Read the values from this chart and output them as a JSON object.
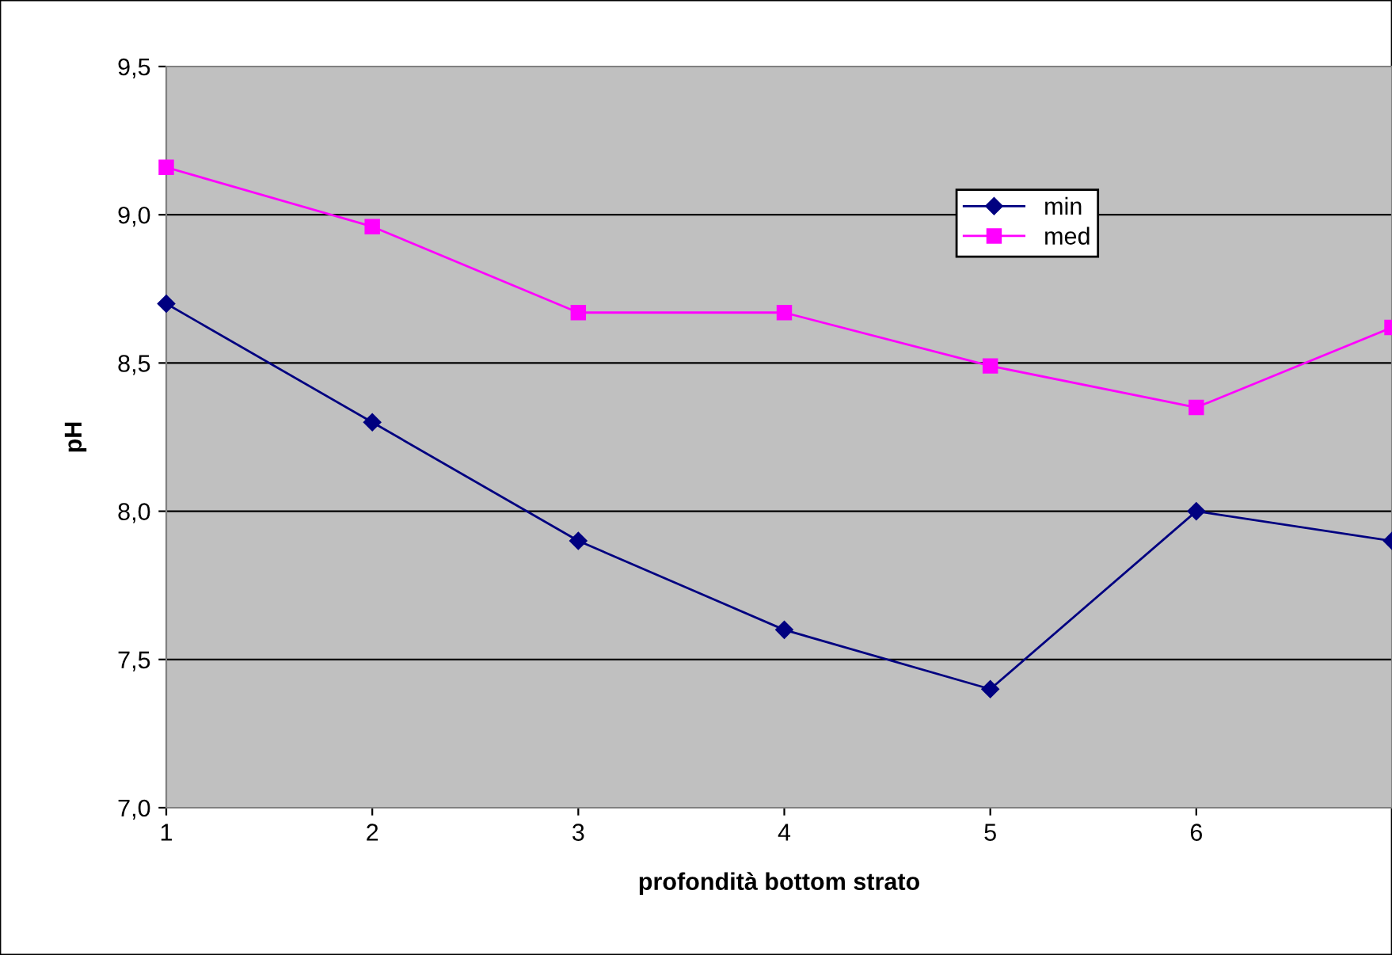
{
  "chart_data": {
    "type": "line",
    "xlabel": "profondità bottom strato",
    "ylabel": "pH",
    "xlim": [
      1,
      6.95
    ],
    "xticks": [
      1,
      2,
      3,
      4,
      5,
      6
    ],
    "ylim": [
      7.0,
      9.5
    ],
    "yticks": [
      {
        "value": 7.0,
        "label": "7,0"
      },
      {
        "value": 7.5,
        "label": "7,5"
      },
      {
        "value": 8.0,
        "label": "8,0"
      },
      {
        "value": 8.5,
        "label": "8,5"
      },
      {
        "value": 9.0,
        "label": "9,0"
      },
      {
        "value": 9.5,
        "label": "9,5"
      }
    ],
    "grid": "y",
    "legend": "top right",
    "line_style": "solid",
    "series": [
      {
        "name": "min",
        "color": "#000080",
        "marker": "diamond",
        "x": [
          1,
          2,
          3,
          4,
          5,
          6,
          6.95
        ],
        "values": [
          8.7,
          8.3,
          7.9,
          7.6,
          7.4,
          8.0,
          7.9
        ]
      },
      {
        "name": "med",
        "color": "#ff00ff",
        "marker": "square",
        "x": [
          1,
          2,
          3,
          4,
          5,
          6,
          6.95
        ],
        "values": [
          9.16,
          8.96,
          8.67,
          8.67,
          8.49,
          8.35,
          8.62
        ]
      }
    ]
  }
}
